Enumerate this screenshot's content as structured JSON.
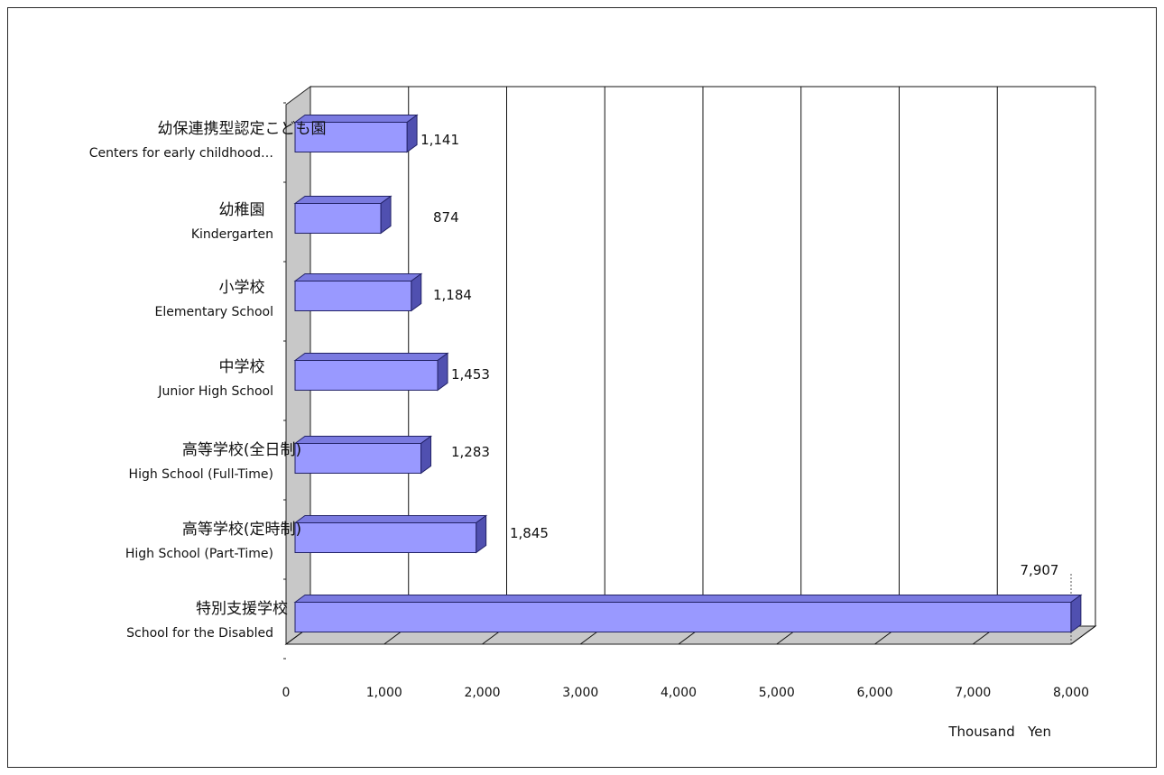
{
  "chart_data": {
    "type": "bar",
    "orientation": "horizontal",
    "three_d": true,
    "categories": [
      {
        "ja": "幼保連携型認定こども園",
        "en": "Centers for early childhood…"
      },
      {
        "ja": "幼稚園",
        "en": "Kindergarten"
      },
      {
        "ja": "小学校",
        "en": "Elementary School"
      },
      {
        "ja": "中学校",
        "en": "Junior High School"
      },
      {
        "ja": "高等学校(全日制)",
        "en": "High School (Full-Time)"
      },
      {
        "ja": "高等学校(定時制)",
        "en": "High School (Part-Time)"
      },
      {
        "ja": "特別支援学校",
        "en": "School for the Disabled"
      }
    ],
    "values": [
      1141,
      874,
      1184,
      1453,
      1283,
      1845,
      7907
    ],
    "value_labels": [
      "1,141",
      "874",
      "1,184",
      "1,453",
      "1,283",
      "1,845",
      "7,907"
    ],
    "xlim": [
      0,
      8000
    ],
    "x_ticks": [
      0,
      1000,
      2000,
      3000,
      4000,
      5000,
      6000,
      7000,
      8000
    ],
    "x_tick_labels": [
      "0",
      "1,000",
      "2,000",
      "3,000",
      "4,000",
      "5,000",
      "6,000",
      "7,000",
      "8,000"
    ],
    "xlabel": "Thousand   Yen",
    "grid": true,
    "colors": {
      "bar_front": "#9999ff",
      "bar_top": "#7a7ae0",
      "bar_side": "#5050b0",
      "bar_edge": "#222266",
      "back_wall": "#c8c8c8",
      "floor": "#c8c8c8"
    }
  }
}
